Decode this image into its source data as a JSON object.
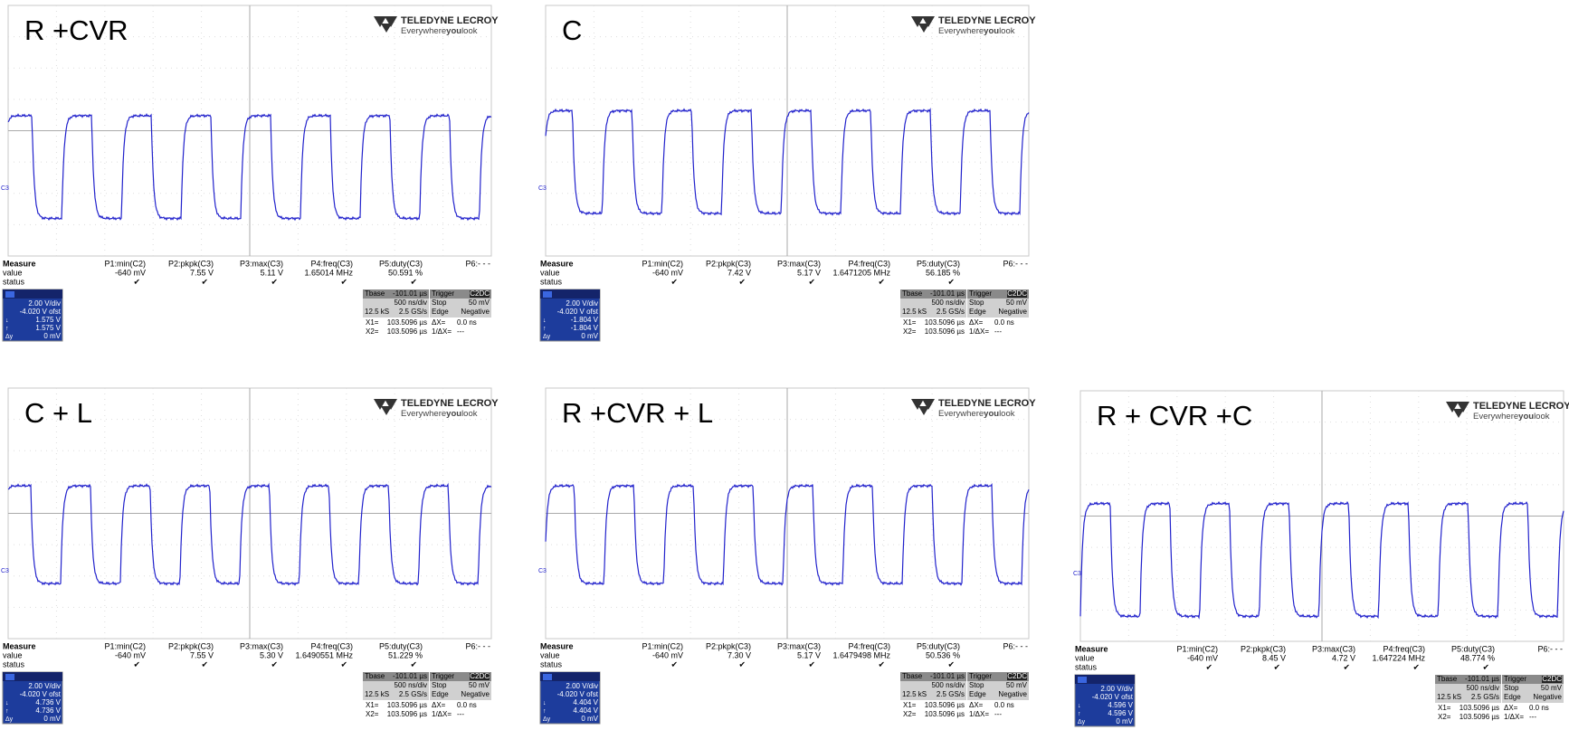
{
  "common": {
    "logo": {
      "brand": "TELEDYNE LECROY",
      "tagline": [
        "Everywhere",
        "you",
        "look"
      ]
    },
    "channel_label": "C3",
    "measure": {
      "header": "Measure",
      "rows": [
        "value",
        "status"
      ],
      "params": [
        "P1:min(C2)",
        "P2:pkpk(C3)",
        "P3:max(C3)",
        "P4:freq(C3)",
        "P5:duty(C3)",
        "P6:- - -"
      ],
      "status": [
        "✔",
        "✔",
        "✔",
        "✔",
        "✔"
      ]
    },
    "channel": {
      "scale": "2.00 V/div",
      "offset": "-4.020 V ofst",
      "markers": [
        "↓",
        "↑",
        "Δy"
      ],
      "delta": "0 mV"
    },
    "timebase": {
      "left": [
        [
          "Tbase",
          "-101.01 µs"
        ],
        [
          "500 ns/div"
        ],
        [
          "12.5 kS",
          "2.5 GS/s"
        ]
      ],
      "right": [
        [
          "Trigger",
          "C2DC"
        ],
        [
          "Stop",
          "50 mV"
        ],
        [
          "Edge",
          "Negative"
        ]
      ]
    },
    "cursors": [
      [
        "X1=",
        "103.5096 µs",
        "ΔX=",
        "0.0 ns"
      ],
      [
        "X2=",
        "103.5096 µs",
        "1/ΔX=",
        "---"
      ]
    ]
  },
  "panels": [
    {
      "title": "R +CVR",
      "values": [
        "-640 mV",
        "7.55 V",
        "5.11 V",
        "1.65014 MHz",
        "50.591 %"
      ],
      "cursor": [
        "1.575 V",
        "1.575 V"
      ]
    },
    {
      "title": "C",
      "values": [
        "-640 mV",
        "7.42 V",
        "5.17 V",
        "1.6471205 MHz",
        "56.185 %"
      ],
      "cursor": [
        "-1.804 V",
        "-1.804 V"
      ]
    },
    {
      "title": "C + L",
      "values": [
        "-640 mV",
        "7.55 V",
        "5.30 V",
        "1.6490551 MHz",
        "51.229 %"
      ],
      "cursor": [
        "4.736 V",
        "4.736 V"
      ]
    },
    {
      "title": "R +CVR + L",
      "values": [
        "-640 mV",
        "7.30 V",
        "5.17 V",
        "1.6479498 MHz",
        "50.536 %"
      ],
      "cursor": [
        "4.404 V",
        "4.404 V"
      ]
    },
    {
      "title": "R + CVR +C",
      "values": [
        "-640 mV",
        "8.45 V",
        "4.72 V",
        "1.647224 MHz",
        "48.774 %"
      ],
      "cursor": [
        "4.596 V",
        "4.596 V"
      ]
    }
  ]
}
